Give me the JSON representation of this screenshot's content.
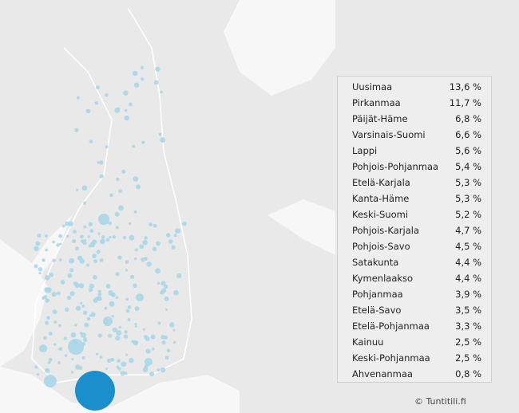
{
  "table": {
    "rows": [
      [
        "Uusimaa",
        "13,6 %"
      ],
      [
        "Pirkanmaa",
        "11,7 %"
      ],
      [
        "Päijät-Häme",
        "6,8 %"
      ],
      [
        "Varsinais-Suomi",
        "6,6 %"
      ],
      [
        "Lappi",
        "5,6 %"
      ],
      [
        "Pohjois-Pohjanmaa",
        "5,4 %"
      ],
      [
        "Etelä-Karjala",
        "5,3 %"
      ],
      [
        "Kanta-Häme",
        "5,3 %"
      ],
      [
        "Keski-Suomi",
        "5,2 %"
      ],
      [
        "Pohjois-Karjala",
        "4,7 %"
      ],
      [
        "Pohjois-Savo",
        "4,5 %"
      ],
      [
        "Satakunta",
        "4,4 %"
      ],
      [
        "Kymenlaakso",
        "4,4 %"
      ],
      [
        "Pohjanmaa",
        "3,9 %"
      ],
      [
        "Etelä-Savo",
        "3,5 %"
      ],
      [
        "Etelä-Pohjanmaa",
        "3,3 %"
      ],
      [
        "Kainuu",
        "2,5 %"
      ],
      [
        "Keski-Pohjanmaa",
        "2,5 %"
      ],
      [
        "Ahvenanmaa",
        "0,8 %"
      ]
    ]
  },
  "footer": {
    "copyright": "© Tuntitili.fi"
  }
}
